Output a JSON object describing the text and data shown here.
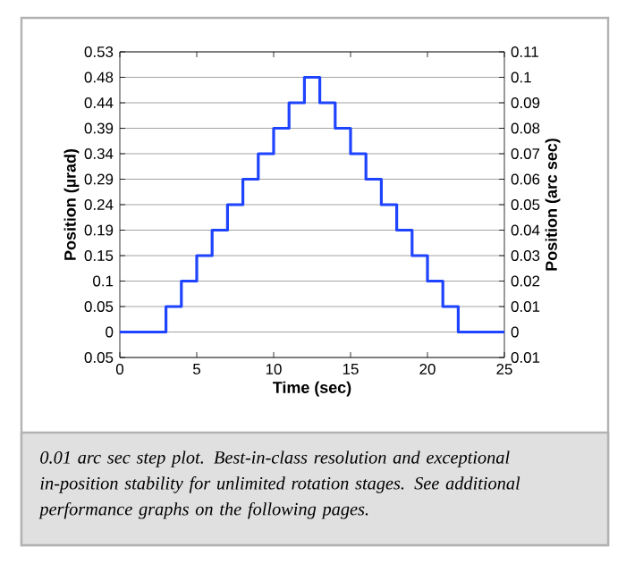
{
  "chart_data": {
    "type": "step",
    "xlabel": "Time (sec)",
    "ylabel": "Position (µrad)",
    "y2label": "Position (arc sec)",
    "x": [
      0,
      3,
      4,
      5,
      6,
      7,
      8,
      9,
      10,
      11,
      12,
      13,
      14,
      15,
      16,
      17,
      18,
      19,
      20,
      21,
      22,
      25
    ],
    "series": [
      {
        "color": "#1f44ff",
        "axis": "y2",
        "values": [
          0,
          0.01,
          0.02,
          0.03,
          0.04,
          0.05,
          0.06,
          0.07,
          0.08,
          0.09,
          0.1,
          0.09,
          0.08,
          0.07,
          0.06,
          0.05,
          0.04,
          0.03,
          0.02,
          0.01,
          0,
          0
        ]
      }
    ],
    "xlim": [
      0,
      25
    ],
    "xticks": [
      0,
      5,
      10,
      15,
      20,
      25
    ],
    "ylim": [
      -0.0485,
      0.5333
    ],
    "yticks": [
      {
        "value": -0.0485,
        "label": "0.05"
      },
      0,
      {
        "value": 0.0485,
        "label": "0.05"
      },
      {
        "value": 0.097,
        "label": "0.1"
      },
      {
        "value": 0.1454,
        "label": "0.15"
      },
      {
        "value": 0.1939,
        "label": "0.19"
      },
      {
        "value": 0.2424,
        "label": "0.24"
      },
      {
        "value": 0.2909,
        "label": "0.29"
      },
      {
        "value": 0.3394,
        "label": "0.34"
      },
      {
        "value": 0.3878,
        "label": "0.39"
      },
      {
        "value": 0.4363,
        "label": "0.44"
      },
      {
        "value": 0.4848,
        "label": "0.48"
      },
      {
        "value": 0.5333,
        "label": "0.53"
      }
    ],
    "y2lim": [
      -0.01,
      0.11
    ],
    "y2ticks": [
      {
        "value": -0.01,
        "label": "0.01"
      },
      0,
      0.01,
      0.02,
      0.03,
      0.04,
      0.05,
      0.06,
      0.07,
      0.08,
      0.09,
      0.1,
      0.11
    ],
    "grid": "y",
    "line_style": "solid",
    "marker": "none",
    "annotations": [
      "0.01 arc sec step plot. Best-in-class resolution and exceptional in-position stability for unlimited rotation stages. See additional performance graphs on the following pages."
    ]
  }
}
